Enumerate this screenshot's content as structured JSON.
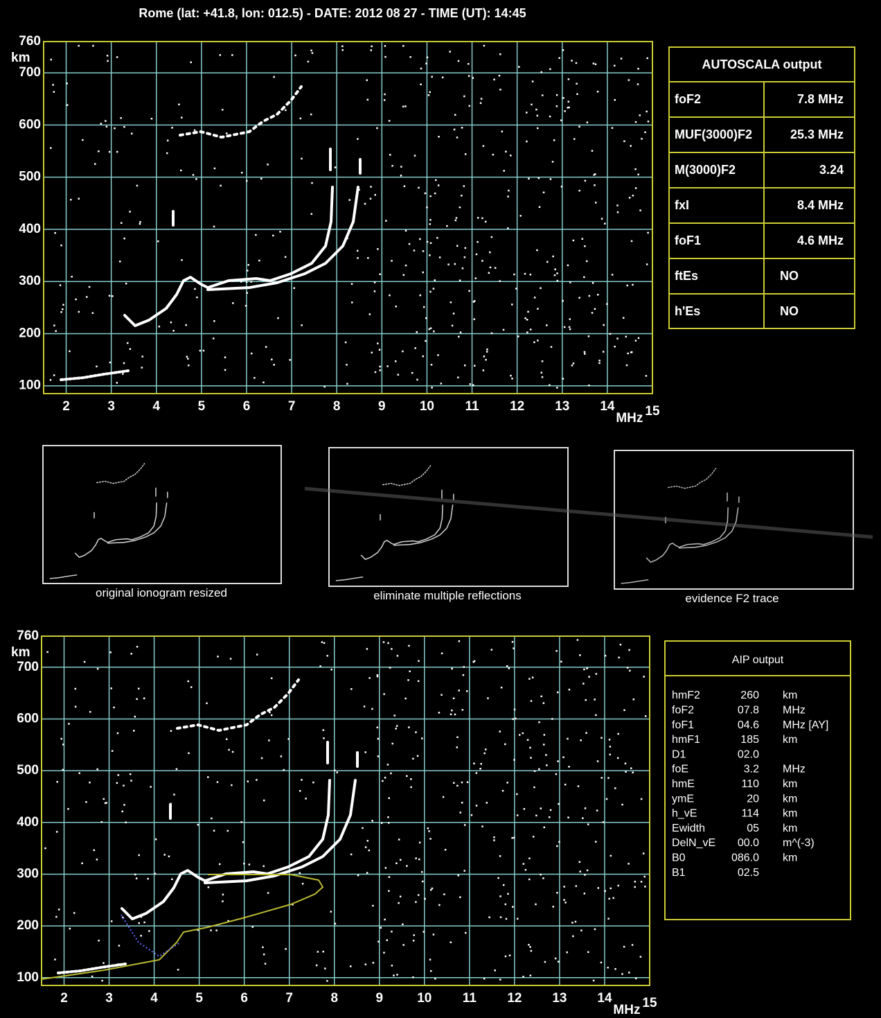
{
  "title": "Rome (lat: +41.8, lon: 012.5) - DATE: 2012 08 27 - TIME (UT): 14:45",
  "ionogram_axes": {
    "xlim": [
      1.5,
      15
    ],
    "ylim": [
      85,
      760
    ],
    "xticks": [
      2,
      3,
      4,
      5,
      6,
      7,
      8,
      9,
      10,
      11,
      12,
      13,
      14,
      15
    ],
    "yticks": [
      100,
      200,
      300,
      400,
      500,
      600,
      700,
      760
    ],
    "x_unit": "MHz",
    "y_unit": "km"
  },
  "autoscala": {
    "title": "AUTOSCALA output",
    "rows": [
      [
        "foF2",
        "7.8 MHz"
      ],
      [
        "MUF(3000)F2",
        "25.3 MHz"
      ],
      [
        "M(3000)F2",
        "3.24"
      ],
      [
        "fxI",
        "8.4 MHz"
      ],
      [
        "foF1",
        "4.6 MHz"
      ],
      [
        "ftEs",
        "NO"
      ],
      [
        "h'Es",
        "NO"
      ]
    ]
  },
  "thumbnails": [
    {
      "caption": "original ionogram resized"
    },
    {
      "caption": "eliminate multiple reflections"
    },
    {
      "caption": "evidence F2 trace"
    }
  ],
  "aip": {
    "title": "AIP output",
    "rows": [
      [
        "hmF2",
        "260",
        "km"
      ],
      [
        "foF2",
        "07.8",
        "MHz"
      ],
      [
        "foF1",
        "04.6",
        "MHz [AY]"
      ],
      [
        "hmF1",
        "185",
        "km"
      ],
      [
        "D1",
        "02.0"
      ],
      [
        "foE",
        "3.2",
        "MHz"
      ],
      [
        "hmE",
        "110",
        "km"
      ],
      [
        "ymE",
        "20",
        "km"
      ],
      [
        "h_vE",
        "114",
        "km"
      ],
      [
        "Ewidth",
        "05",
        "km"
      ],
      [
        "DelN_vE",
        "00.0",
        "m^(-3)"
      ],
      [
        "B0",
        "086.0",
        "km"
      ],
      [
        "B1",
        "02.5"
      ]
    ]
  }
}
